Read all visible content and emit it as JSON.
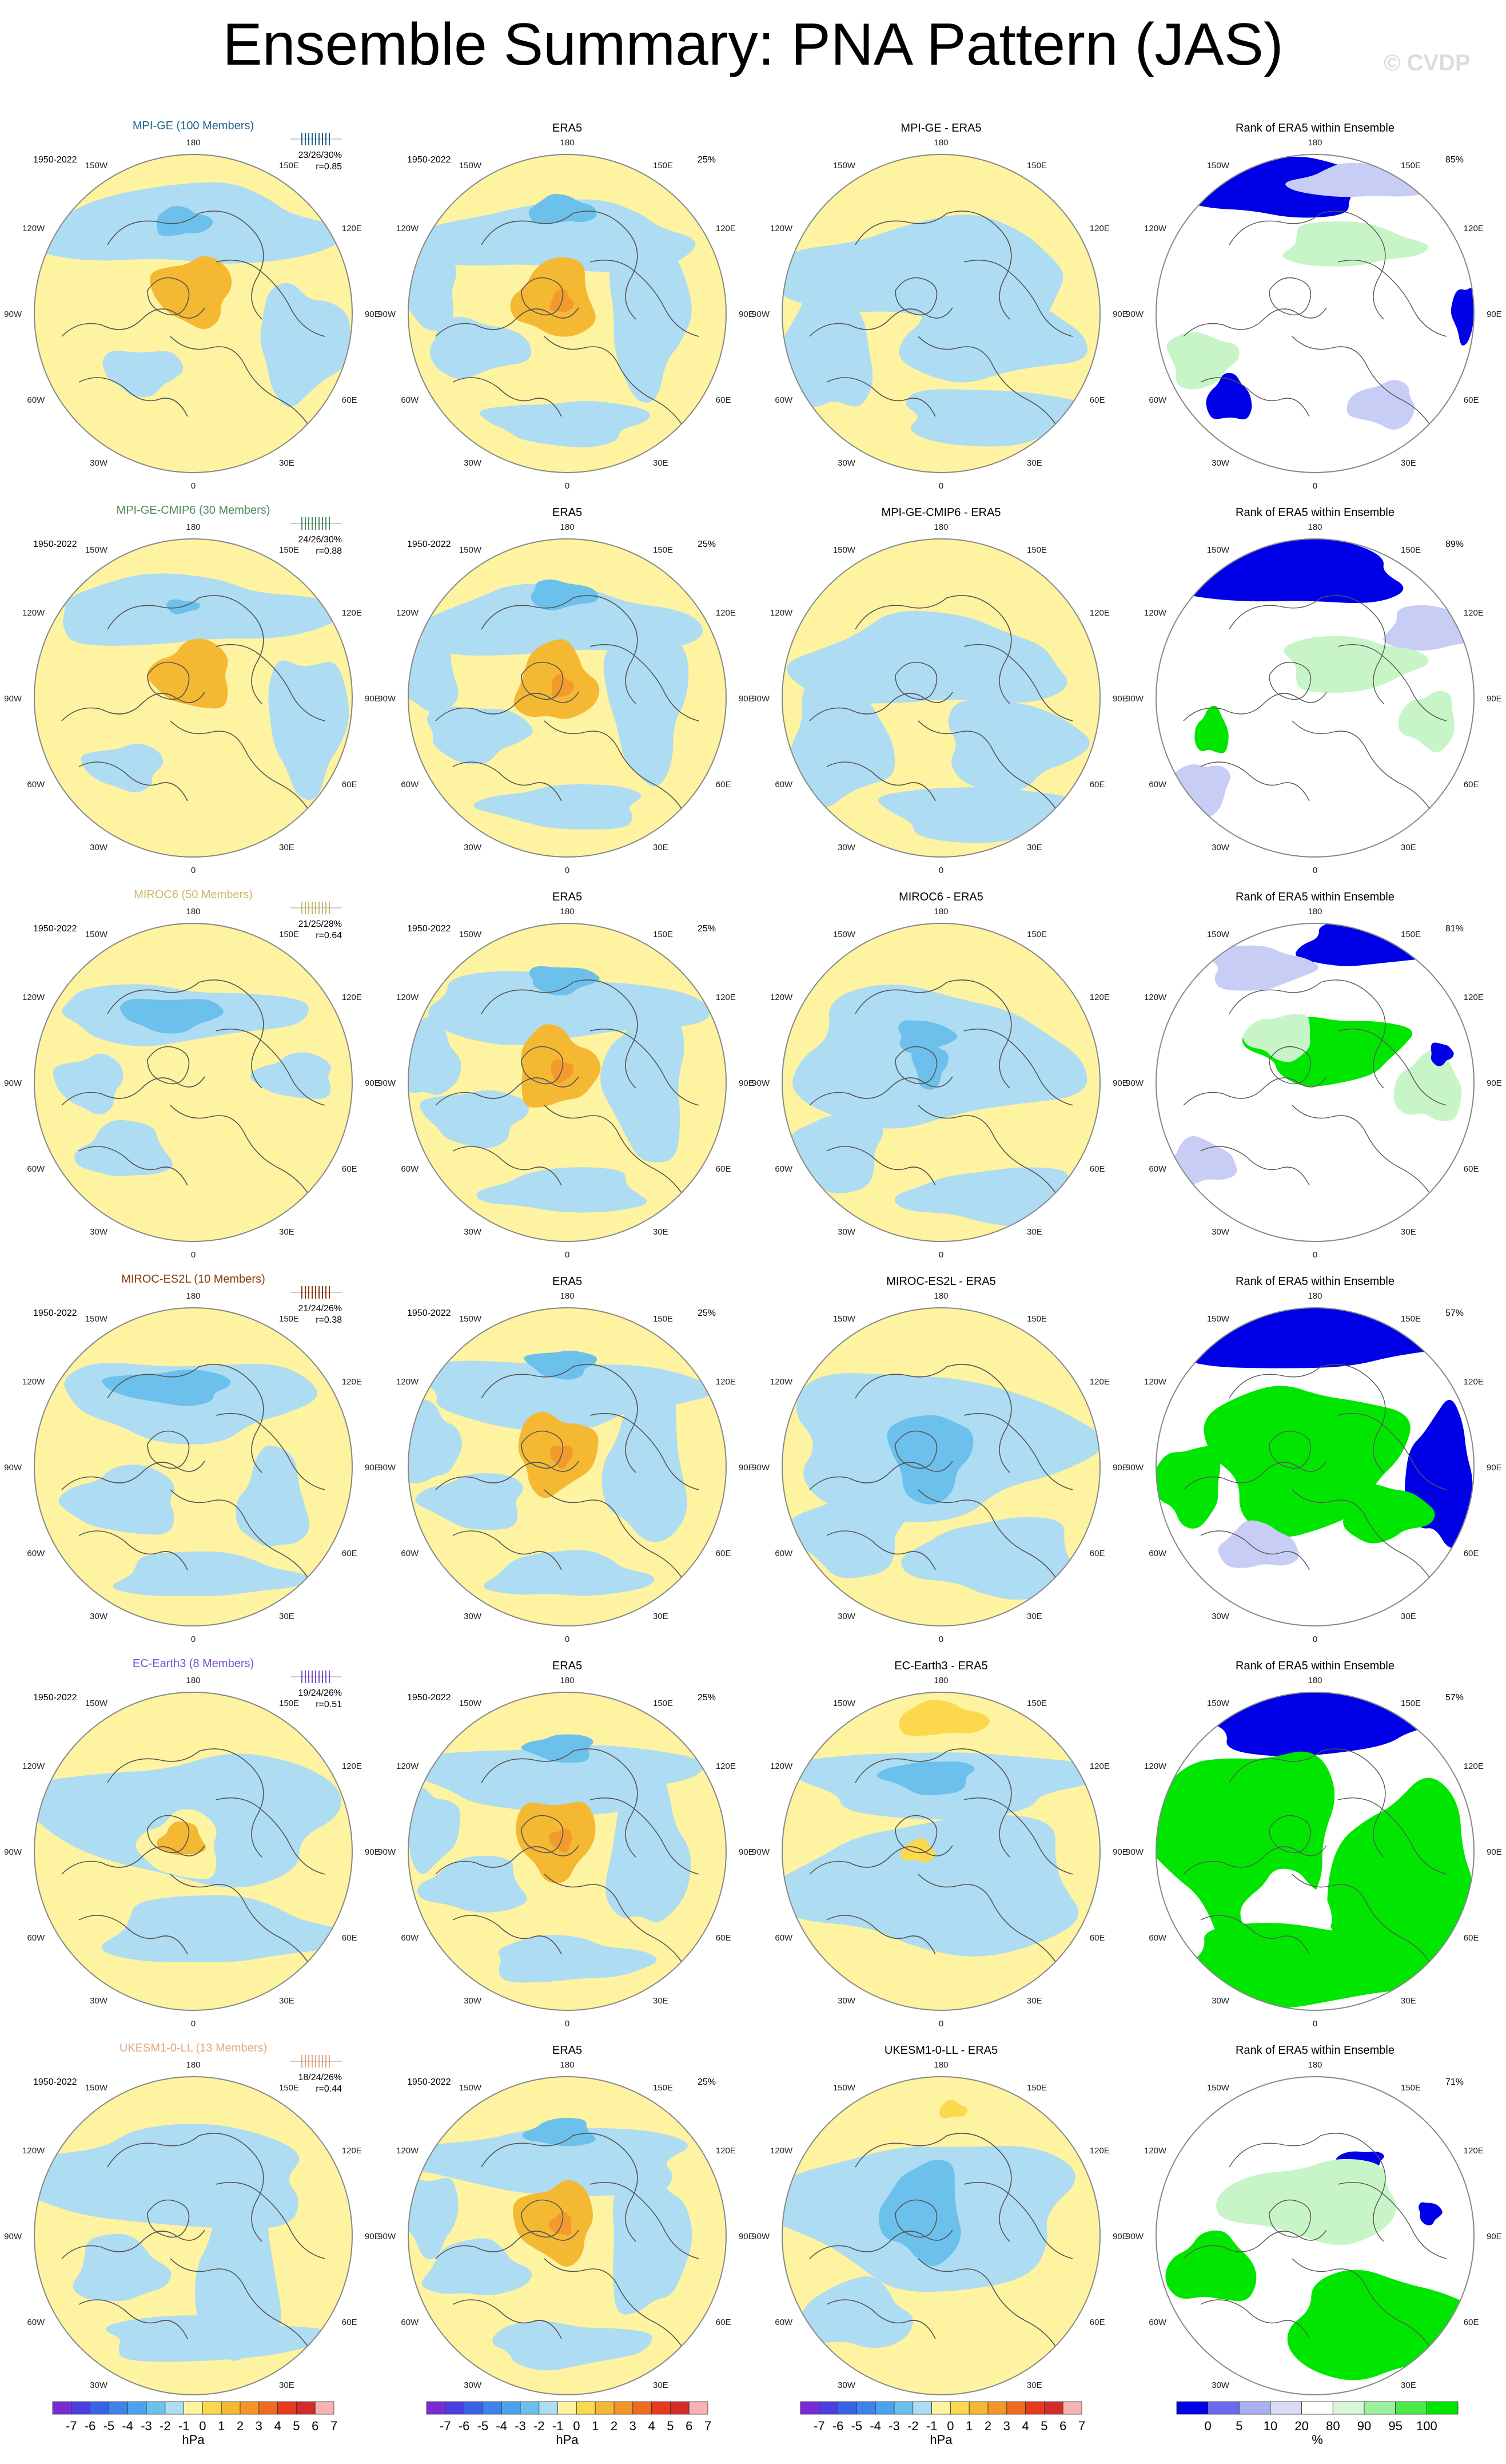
{
  "title": "Ensemble Summary: PNA Pattern (JAS)",
  "watermark": "© CVDP",
  "period": "1950-2022",
  "longitude_labels": [
    "180",
    "150E",
    "120E",
    "90E",
    "60E",
    "30E",
    "0",
    "30W",
    "60W",
    "90W",
    "120W",
    "150W"
  ],
  "colors": {
    "pos1": "#fdf3a0",
    "pos2": "#fcd84c",
    "pos3": "#f5b833",
    "neg1": "#aedcf2",
    "neg2": "#6cc0ec",
    "neg3": "#3e9ee0",
    "rank_low": "#0000e6",
    "rank_low_light": "#c8cdf5",
    "rank_high": "#00e600",
    "rank_high_light": "#c8f5c8",
    "coast": "#555555"
  },
  "rows": [
    {
      "model": "MPI-GE (100 Members)",
      "title_color": "#1f5f8b",
      "stats": "23/26/30%",
      "r": "r=0.85",
      "era_pct": "25%",
      "diff_title": "MPI-GE - ERA5",
      "rank_pct": "85%"
    },
    {
      "model": "MPI-GE-CMIP6 (30 Members)",
      "title_color": "#4e8a5e",
      "stats": "24/26/30%",
      "r": "r=0.88",
      "era_pct": "25%",
      "diff_title": "MPI-GE-CMIP6 - ERA5",
      "rank_pct": "89%"
    },
    {
      "model": "MIROC6 (50 Members)",
      "title_color": "#c9b968",
      "stats": "21/25/28%",
      "r": "r=0.64",
      "era_pct": "25%",
      "diff_title": "MIROC6 - ERA5",
      "rank_pct": "81%"
    },
    {
      "model": "MIROC-ES2L (10 Members)",
      "title_color": "#8b3a0f",
      "stats": "21/24/26%",
      "r": "r=0.38",
      "era_pct": "25%",
      "diff_title": "MIROC-ES2L - ERA5",
      "rank_pct": "57%"
    },
    {
      "model": "EC-Earth3 (8 Members)",
      "title_color": "#7a4fd0",
      "stats": "19/24/26%",
      "r": "r=0.51",
      "era_pct": "25%",
      "diff_title": "EC-Earth3 - ERA5",
      "rank_pct": "57%"
    },
    {
      "model": "UKESM1-0-LL (13 Members)",
      "title_color": "#e0a880",
      "stats": "18/24/26%",
      "r": "r=0.44",
      "era_pct": "25%",
      "diff_title": "UKESM1-0-LL - ERA5",
      "rank_pct": "71%"
    }
  ],
  "col_titles": {
    "era": "ERA5",
    "rank": "Rank of ERA5 within Ensemble"
  },
  "chart_data": {
    "type": "heatmap",
    "projection": "north-polar-stereographic",
    "panels_per_row": 4,
    "rows": 6,
    "colorbar_hpa": {
      "levels": [
        "-7",
        "-6",
        "-5",
        "-4",
        "-3",
        "-2",
        "-1",
        "0",
        "1",
        "2",
        "3",
        "4",
        "5",
        "6",
        "7"
      ],
      "colors": [
        "#7b2bd3",
        "#4a3fe0",
        "#3a62e6",
        "#3f82ea",
        "#4ba2ee",
        "#6cc0ec",
        "#aedcf2",
        "#fdf3a0",
        "#fcd84c",
        "#f5b833",
        "#f39529",
        "#f06a22",
        "#e6391e",
        "#d42a2a",
        "#f7b3b3"
      ],
      "unit": "hPa"
    },
    "colorbar_rank": {
      "levels": [
        "0",
        "5",
        "10",
        "20",
        "80",
        "90",
        "95",
        "100"
      ],
      "colors": [
        "#0000e6",
        "#6a6aec",
        "#aab0f2",
        "#d8dcf7",
        "#ffffff",
        "#d8f5d8",
        "#9cf09c",
        "#4aea4a",
        "#00e600"
      ],
      "unit": "%"
    }
  }
}
